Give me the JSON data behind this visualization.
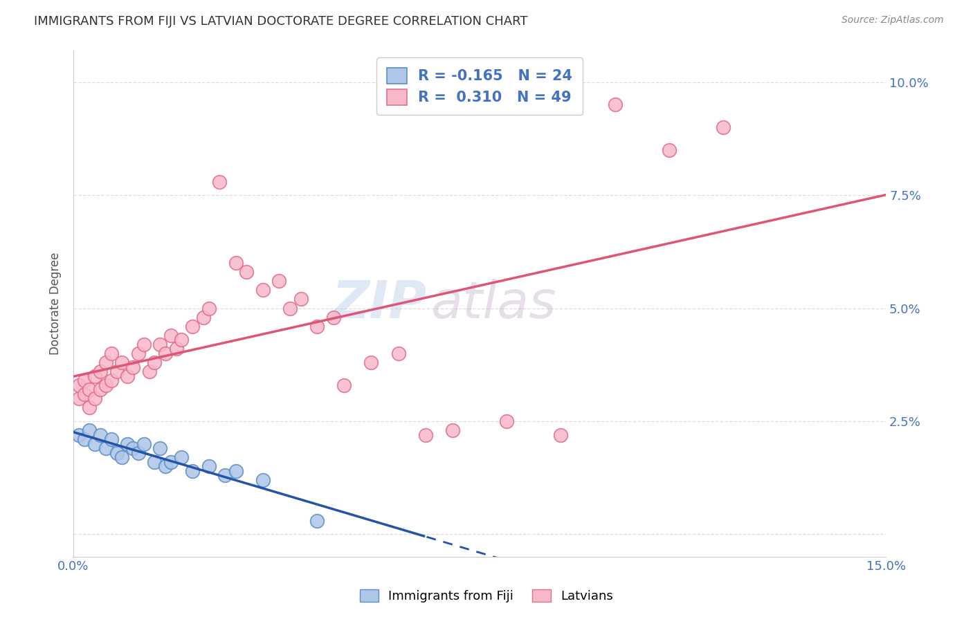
{
  "title": "IMMIGRANTS FROM FIJI VS LATVIAN DOCTORATE DEGREE CORRELATION CHART",
  "source": "Source: ZipAtlas.com",
  "ylabel": "Doctorate Degree",
  "xlim": [
    0.0,
    0.15
  ],
  "ylim": [
    -0.005,
    0.107
  ],
  "fiji_color": "#aec6e8",
  "fiji_edge_color": "#5b8ec4",
  "latvian_color": "#f7b8c8",
  "latvian_edge_color": "#e07090",
  "fiji_R": -0.165,
  "fiji_N": 24,
  "latvian_R": 0.31,
  "latvian_N": 49,
  "fiji_scatter_x": [
    0.001,
    0.002,
    0.003,
    0.004,
    0.005,
    0.006,
    0.007,
    0.008,
    0.009,
    0.01,
    0.011,
    0.012,
    0.013,
    0.015,
    0.016,
    0.017,
    0.018,
    0.02,
    0.022,
    0.025,
    0.028,
    0.03,
    0.035,
    0.045
  ],
  "fiji_scatter_y": [
    0.022,
    0.021,
    0.023,
    0.02,
    0.022,
    0.019,
    0.021,
    0.018,
    0.017,
    0.02,
    0.019,
    0.018,
    0.02,
    0.016,
    0.019,
    0.015,
    0.016,
    0.017,
    0.014,
    0.015,
    0.013,
    0.014,
    0.012,
    0.003
  ],
  "latvian_scatter_x": [
    0.001,
    0.001,
    0.002,
    0.002,
    0.003,
    0.003,
    0.004,
    0.004,
    0.005,
    0.005,
    0.006,
    0.006,
    0.007,
    0.007,
    0.008,
    0.009,
    0.01,
    0.011,
    0.012,
    0.013,
    0.014,
    0.015,
    0.016,
    0.017,
    0.018,
    0.019,
    0.02,
    0.022,
    0.024,
    0.025,
    0.027,
    0.03,
    0.032,
    0.035,
    0.038,
    0.04,
    0.042,
    0.045,
    0.048,
    0.05,
    0.055,
    0.06,
    0.065,
    0.07,
    0.08,
    0.09,
    0.1,
    0.11,
    0.12
  ],
  "latvian_scatter_y": [
    0.03,
    0.033,
    0.031,
    0.034,
    0.032,
    0.028,
    0.035,
    0.03,
    0.032,
    0.036,
    0.033,
    0.038,
    0.034,
    0.04,
    0.036,
    0.038,
    0.035,
    0.037,
    0.04,
    0.042,
    0.036,
    0.038,
    0.042,
    0.04,
    0.044,
    0.041,
    0.043,
    0.046,
    0.048,
    0.05,
    0.078,
    0.06,
    0.058,
    0.054,
    0.056,
    0.05,
    0.052,
    0.046,
    0.048,
    0.033,
    0.038,
    0.04,
    0.022,
    0.023,
    0.025,
    0.022,
    0.095,
    0.085,
    0.09
  ],
  "watermark_line1": "ZIP",
  "watermark_line2": "atlas",
  "background_color": "#ffffff",
  "grid_color": "#dddddd",
  "title_color": "#333333",
  "axis_label_color": "#4472c4",
  "trendline_fiji_color": "#2255aa",
  "trendline_latvian_color": "#e05575",
  "fiji_line_x_end_solid": 0.065
}
